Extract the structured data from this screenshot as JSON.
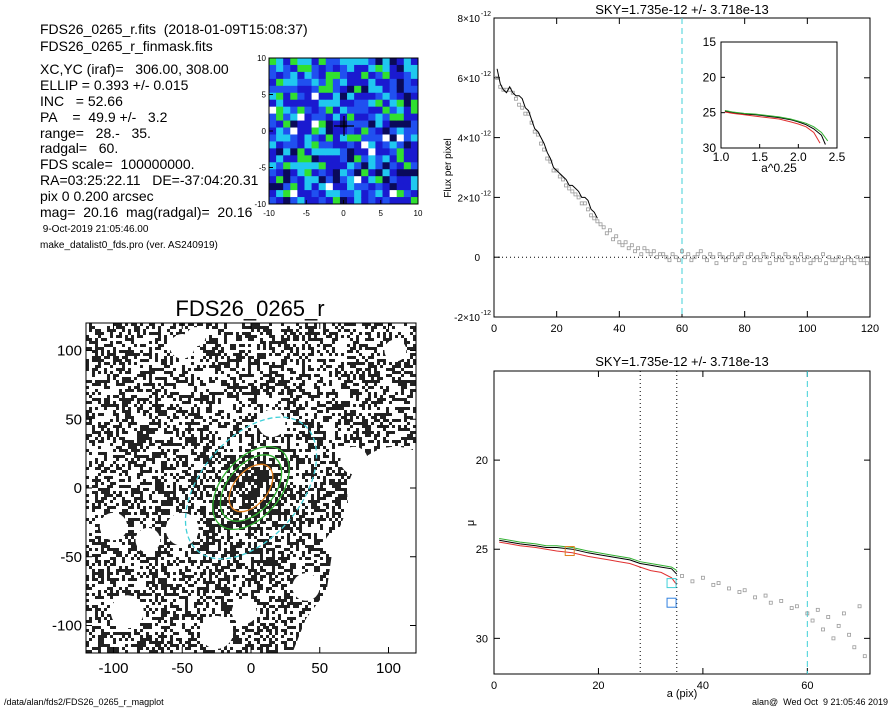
{
  "header": {
    "line1": "FDS26_0265_r.fits  (2018-01-09T15:08:37)",
    "line2": "FDS26_0265_r_finmask.fits"
  },
  "info": [
    "XC,YC (iraf)=   306.00, 308.00",
    "ELLIP = 0.393 +/- 0.015",
    "INC   = 52.66",
    "PA    =  49.9 +/-   3.2",
    "range=   28.-   35.",
    "radgal=   60.",
    "FDS scale=  100000000.",
    "RA=03:25:22.11   DE=-37:04:20.31",
    "pix 0 0.200 arcsec",
    "mag=  20.16  mag(radgal)=  20.16"
  ],
  "date_line": " 9-Oct-2019 21:05:46.00",
  "program_line": "make_datalist0_fds.pro (ver. AS240919)",
  "footer": {
    "left": "/data/alan/fds2/FDS26_0265_r_magplot",
    "right": "alan@  Wed Oct  9 21:05:46 2019"
  },
  "colors": {
    "black": "#000000",
    "grey": "#9a9a9a",
    "cyan": "#40d0d8",
    "green": "#30b030",
    "red": "#e03030",
    "orange": "#e08020",
    "blue": "#3080e0"
  },
  "chart_data": [
    {
      "id": "residual-map",
      "type": "heatmap",
      "title": "",
      "xlabel": "",
      "ylabel": "",
      "xlim": [
        -10,
        10
      ],
      "ylim": [
        -10,
        10
      ],
      "xticks": [
        "-10",
        "-5",
        "0",
        "5",
        "10"
      ],
      "yticks": [
        "10",
        "5",
        "0",
        "-5",
        "-10"
      ],
      "colormap": [
        "#0a0a5a",
        "#1a1ad0",
        "#2050f0",
        "#20c8f0",
        "#30e030",
        "#ffffff"
      ]
    },
    {
      "id": "image",
      "type": "heatmap",
      "title": "FDS26_0265_r",
      "xlim": [
        -120,
        120
      ],
      "ylim": [
        -120,
        120
      ],
      "xticks": [
        "-100",
        "-50",
        "0",
        "50",
        "100"
      ],
      "yticks": [
        "100",
        "50",
        "0",
        "-50",
        "-100"
      ],
      "ellipses": [
        {
          "color": "cyan",
          "a": 60,
          "pa": 49.9,
          "ellip": 0.393
        },
        {
          "color": "green",
          "a": 35,
          "pa": 49.9,
          "ellip": 0.393
        },
        {
          "color": "green",
          "a": 28,
          "pa": 49.9,
          "ellip": 0.393
        },
        {
          "color": "orange",
          "a": 20,
          "pa": 49.9,
          "ellip": 0.393
        }
      ]
    },
    {
      "id": "flux-profile",
      "type": "line",
      "title": "SKY=1.735e-12 +/- 3.718e-13",
      "xlabel": "",
      "ylabel": "Flux per pixel",
      "xlim": [
        0,
        120
      ],
      "ylim": [
        -2e-12,
        8e-12
      ],
      "xticks": [
        "0",
        "20",
        "40",
        "60",
        "80",
        "100",
        "120"
      ],
      "ytick_values": [
        -2e-12,
        0,
        2e-12,
        4e-12,
        6e-12,
        8e-12
      ],
      "ytick_mant": [
        "-2×10",
        "0",
        "2×10",
        "4×10",
        "6×10",
        "8×10"
      ],
      "ytick_exp": [
        "-12",
        "",
        "-12",
        "-12",
        "-12",
        "-12"
      ],
      "vline_x": 60,
      "series": [
        {
          "color": "black",
          "x": [
            1,
            2,
            3,
            4,
            5,
            6,
            7,
            8,
            9,
            10,
            11,
            12,
            13,
            14,
            15,
            16,
            17,
            18,
            19,
            20,
            21,
            22,
            23,
            24,
            25,
            26,
            27,
            28,
            29,
            30,
            31,
            32,
            33
          ],
          "values": [
            6.3e-12,
            5.8e-12,
            5.6e-12,
            5.5e-12,
            5.7e-12,
            5.5e-12,
            5.4e-12,
            5.4e-12,
            5.3e-12,
            5e-12,
            4.9e-12,
            4.6e-12,
            4.3e-12,
            4.2e-12,
            4e-12,
            3.8e-12,
            3.5e-12,
            3.3e-12,
            3e-12,
            2.9e-12,
            2.8e-12,
            2.7e-12,
            2.6e-12,
            2.4e-12,
            2.4e-12,
            2.3e-12,
            2.2e-12,
            2e-12,
            2e-12,
            1.9e-12,
            1.6e-12,
            1.5e-12,
            1.3e-12
          ]
        }
      ],
      "points_x": [
        1,
        2,
        3,
        4,
        5,
        6,
        7,
        8,
        9,
        10,
        11,
        12,
        13,
        14,
        15,
        16,
        17,
        18,
        19,
        20,
        21,
        22,
        23,
        24,
        25,
        26,
        27,
        28,
        29,
        30,
        31,
        32,
        33,
        34,
        35,
        36,
        37,
        38,
        39,
        40,
        41,
        42,
        43,
        44,
        45,
        46,
        47,
        48,
        49,
        50,
        51,
        52,
        53,
        54,
        55,
        56,
        57,
        58,
        59,
        60,
        61,
        62,
        63,
        64,
        65,
        66,
        67,
        68,
        69,
        70,
        71,
        72,
        73,
        74,
        75,
        76,
        77,
        78,
        79,
        80,
        81,
        82,
        83,
        84,
        85,
        86,
        87,
        88,
        89,
        90,
        91,
        92,
        93,
        94,
        95,
        96,
        97,
        98,
        99,
        100,
        101,
        102,
        103,
        104,
        105,
        106,
        107,
        108,
        109,
        110,
        111,
        112,
        113,
        114,
        115,
        116,
        117,
        118,
        119
      ],
      "points_y": [
        6e-12,
        5.7e-12,
        5.6e-12,
        5.6e-12,
        5.6e-12,
        5.5e-12,
        5.3e-12,
        5.1e-12,
        5e-12,
        4.8e-12,
        4.8e-12,
        4.5e-12,
        4.2e-12,
        4.1e-12,
        3.8e-12,
        3.6e-12,
        3.3e-12,
        3.2e-12,
        2.9e-12,
        2.9e-12,
        2.7e-12,
        2.6e-12,
        2.4e-12,
        2.3e-12,
        2.2e-12,
        2.1e-12,
        2e-12,
        1.8e-12,
        1.8e-12,
        1.6e-12,
        1.4e-12,
        1.3e-12,
        1.2e-12,
        1.1e-12,
        1e-12,
        8e-13,
        9e-13,
        6e-13,
        7e-13,
        5e-13,
        4e-13,
        5e-13,
        3e-13,
        4e-13,
        2e-13,
        3e-13,
        1e-13,
        3e-13,
        2e-13,
        1e-13,
        2e-13,
        0.0,
        1e-13,
        1e-13,
        0.0,
        -1e-13,
        1e-13,
        0.0,
        -1e-13,
        2e-13,
        0.0,
        1e-13,
        -1e-13,
        0.0,
        1e-13,
        2e-13,
        0.0,
        -1e-13,
        1e-13,
        0.0,
        -2e-13,
        1e-13,
        0.0,
        -1e-13,
        0.0,
        1e-13,
        -1e-13,
        0.0,
        1e-13,
        -2e-13,
        0.0,
        1e-13,
        -1e-13,
        0.0,
        -1e-13,
        1e-13,
        0.0,
        -2e-13,
        1e-13,
        -1e-13,
        0.0,
        -1e-13,
        1e-13,
        0.0,
        -2e-13,
        0.0,
        -1e-13,
        1e-13,
        -1e-13,
        0.0,
        -2e-13,
        -1e-13,
        0.0,
        -1e-13,
        1e-13,
        -2e-13,
        0.0,
        -1e-13,
        -1e-13,
        0.0,
        -2e-13,
        -1e-13,
        0.0,
        -1e-13,
        -2e-13,
        0.0,
        -1e-13,
        -1e-13,
        -2e-13
      ]
    },
    {
      "id": "inset",
      "type": "line",
      "title": "",
      "xlabel": "a^0.25",
      "xlim": [
        1.0,
        2.5
      ],
      "ylim": [
        15,
        30
      ],
      "xticks": [
        "1.0",
        "1.5",
        "2.0",
        "2.5"
      ],
      "yticks": [
        "15",
        "20",
        "25",
        "30"
      ],
      "series": [
        {
          "color": "black",
          "x": [
            1.05,
            1.15,
            1.3,
            1.45,
            1.6,
            1.75,
            1.9,
            2.0,
            2.1,
            2.2,
            2.3,
            2.35
          ],
          "values": [
            24.8,
            25.0,
            25.2,
            25.3,
            25.5,
            25.7,
            26.0,
            26.3,
            26.7,
            27.3,
            28.2,
            29.5
          ]
        },
        {
          "color": "green",
          "x": [
            1.05,
            1.15,
            1.3,
            1.45,
            1.6,
            1.75,
            1.9,
            2.0,
            2.1,
            2.2,
            2.3,
            2.38
          ],
          "values": [
            24.7,
            24.9,
            25.1,
            25.2,
            25.4,
            25.6,
            25.9,
            26.2,
            26.5,
            27.0,
            27.8,
            29.0
          ]
        },
        {
          "color": "red",
          "x": [
            1.05,
            1.15,
            1.3,
            1.45,
            1.6,
            1.75,
            1.9,
            2.0,
            2.1,
            2.2,
            2.28
          ],
          "values": [
            24.9,
            25.1,
            25.3,
            25.5,
            25.7,
            25.9,
            26.3,
            26.6,
            27.0,
            27.8,
            29.3
          ]
        }
      ]
    },
    {
      "id": "sb-profile",
      "type": "line",
      "title": "SKY=1.735e-12 +/- 3.718e-13",
      "xlabel": "a (pix)",
      "ylabel": "μ",
      "xlim": [
        0,
        72
      ],
      "ylim": [
        15,
        32
      ],
      "ylim_inverted": true,
      "xticks": [
        "0",
        "20",
        "40",
        "60"
      ],
      "yticks": [
        "20",
        "25",
        "30"
      ],
      "vlines_dotted": [
        28,
        35
      ],
      "vline_cyan": 60,
      "series": [
        {
          "color": "black",
          "x": [
            1,
            3,
            5,
            8,
            10,
            12,
            15,
            18,
            20,
            22,
            24,
            26,
            28,
            30,
            32,
            34,
            35
          ],
          "values": [
            24.5,
            24.6,
            24.7,
            24.8,
            24.9,
            24.9,
            25.0,
            25.2,
            25.3,
            25.4,
            25.5,
            25.6,
            25.8,
            25.9,
            26.0,
            26.1,
            26.4
          ]
        },
        {
          "color": "green",
          "x": [
            1,
            3,
            5,
            8,
            10,
            12,
            15,
            18,
            20,
            22,
            24,
            26,
            28,
            30,
            32,
            34,
            35
          ],
          "values": [
            24.4,
            24.5,
            24.6,
            24.7,
            24.8,
            24.8,
            24.9,
            25.1,
            25.2,
            25.3,
            25.4,
            25.5,
            25.7,
            25.8,
            25.9,
            26.0,
            26.2
          ]
        },
        {
          "color": "red",
          "x": [
            1,
            3,
            5,
            8,
            10,
            12,
            15,
            18,
            20,
            22,
            24,
            26,
            28,
            30,
            32,
            34,
            35
          ],
          "values": [
            24.6,
            24.7,
            24.8,
            24.9,
            25.0,
            25.1,
            25.2,
            25.4,
            25.5,
            25.6,
            25.7,
            25.8,
            26.0,
            26.2,
            26.3,
            26.6,
            27.0
          ]
        }
      ],
      "points_x": [
        36,
        38,
        40,
        42,
        43,
        45,
        47,
        48,
        50,
        52,
        53,
        55,
        57,
        58,
        60,
        61,
        62,
        63,
        64,
        65,
        66,
        67,
        68,
        69,
        70,
        71
      ],
      "points_y": [
        26.5,
        26.8,
        26.6,
        27.0,
        26.9,
        27.2,
        27.4,
        27.3,
        27.7,
        27.6,
        28.0,
        27.9,
        28.3,
        28.2,
        28.6,
        29.0,
        28.4,
        29.5,
        28.8,
        30.0,
        29.3,
        28.6,
        29.8,
        30.5,
        28.2,
        31.0
      ],
      "markers": [
        {
          "color": "orange",
          "x": 14.5,
          "y": 25.1
        },
        {
          "color": "cyan",
          "x": 34,
          "y": 26.9
        },
        {
          "color": "blue",
          "x": 34,
          "y": 28.0
        }
      ]
    }
  ]
}
